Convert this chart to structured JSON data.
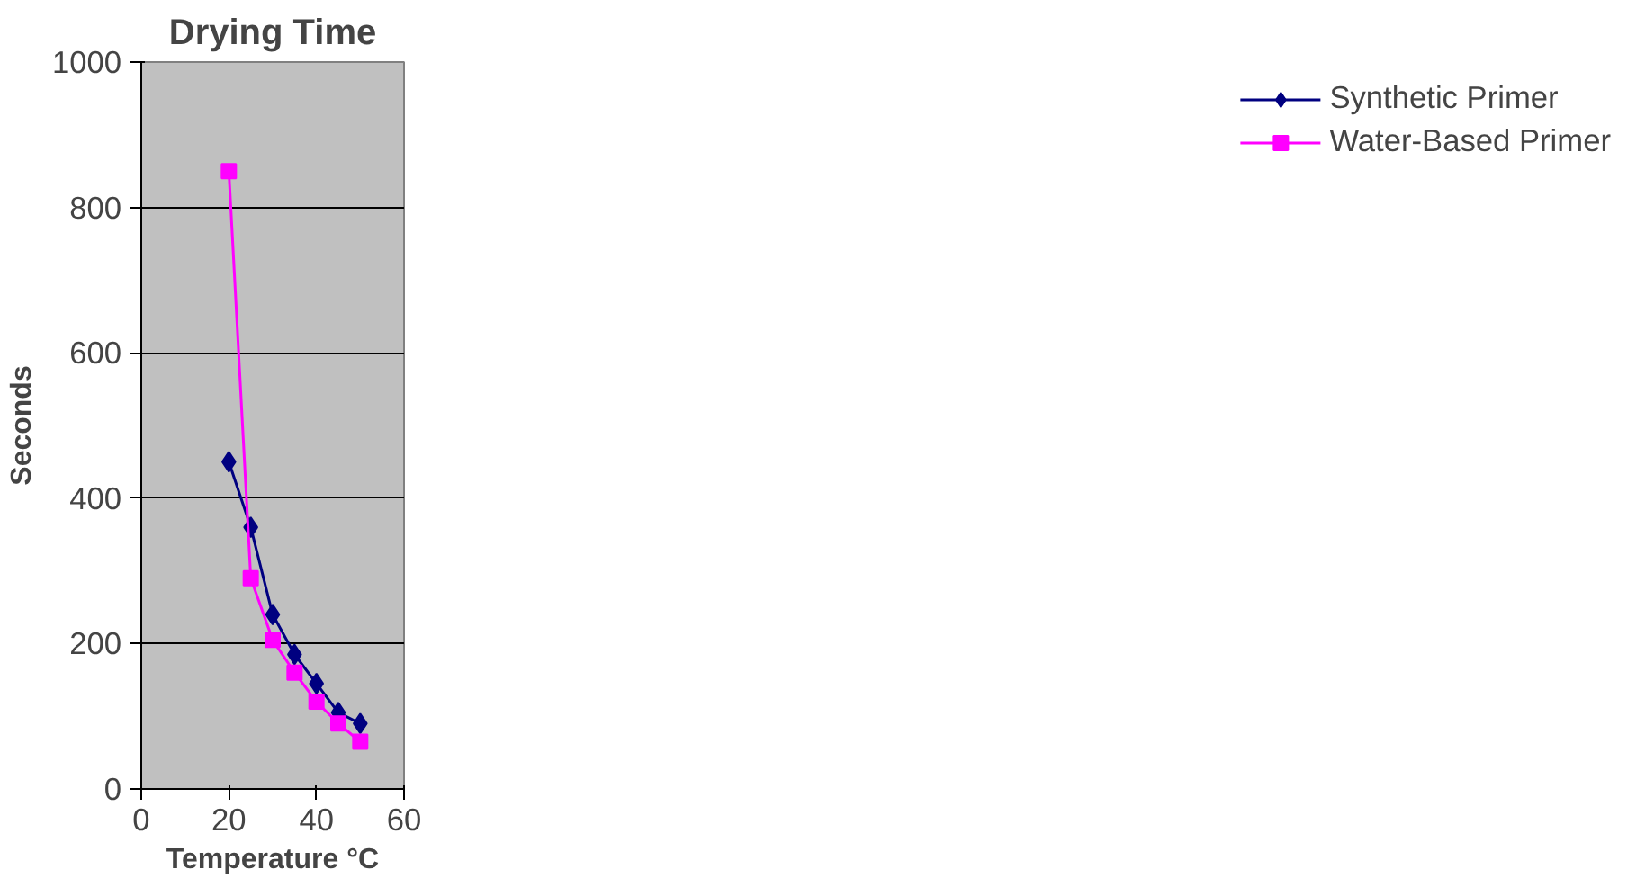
{
  "chart_data": {
    "type": "line",
    "title": "Drying Time",
    "xlabel": "Temperature °C",
    "ylabel": "Seconds",
    "x": [
      20,
      25,
      30,
      35,
      40,
      45,
      50
    ],
    "series": [
      {
        "name": "Synthetic Primer",
        "color": "#000080",
        "marker": "diamond",
        "values": [
          450,
          360,
          240,
          185,
          145,
          105,
          90
        ]
      },
      {
        "name": "Water-Based Primer",
        "color": "#ff00ff",
        "marker": "square",
        "values": [
          850,
          290,
          205,
          160,
          120,
          90,
          65
        ]
      }
    ],
    "xlim": [
      0,
      60
    ],
    "xticks": [
      0,
      20,
      40,
      60
    ],
    "ylim": [
      0,
      1000
    ],
    "yticks": [
      0,
      200,
      400,
      600,
      800,
      1000
    ],
    "grid": "y",
    "legend": "right",
    "line_style": "solid"
  }
}
